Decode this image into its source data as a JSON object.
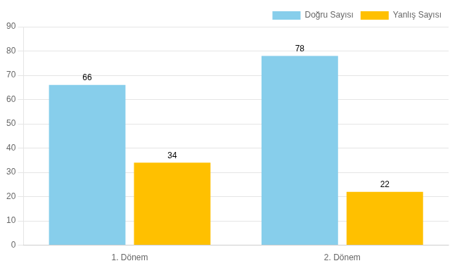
{
  "chart_data": {
    "type": "bar",
    "categories": [
      "1. Dönem",
      "2. Dönem"
    ],
    "series": [
      {
        "name": "Doğru Sayısı",
        "color": "#87CEEB",
        "values": [
          66,
          78
        ]
      },
      {
        "name": "Yanlış Sayısı",
        "color": "#FFC000",
        "values": [
          34,
          22
        ]
      }
    ],
    "ylim": [
      0,
      90
    ],
    "yticks": [
      0,
      10,
      20,
      30,
      40,
      50,
      60,
      70,
      80,
      90
    ],
    "grid": true,
    "data_labels": true,
    "legend": "upper right"
  }
}
